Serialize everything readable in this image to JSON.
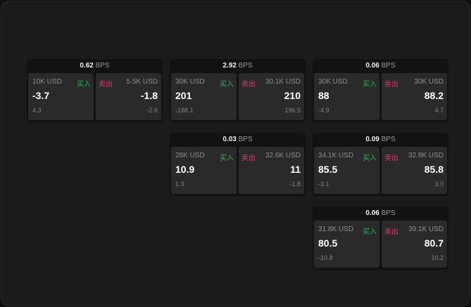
{
  "unit": "BPS",
  "buy_label": "买入",
  "sell_label": "卖出",
  "widgets": [
    {
      "spread": "0.62",
      "buy": {
        "qty": "10K USD",
        "price": "-3.7",
        "change": "4.3"
      },
      "sell": {
        "qty": "5.5K USD",
        "price": "-1.8",
        "change": "-2.6"
      }
    },
    {
      "spread": "2.92",
      "buy": {
        "qty": "30K USD",
        "price": "201",
        "change": "-188.1"
      },
      "sell": {
        "qty": "30.1K USD",
        "price": "210",
        "change": "196.5"
      }
    },
    {
      "spread": "0.06",
      "buy": {
        "qty": "30K USD",
        "price": "88",
        "change": "-4.9"
      },
      "sell": {
        "qty": "30K USD",
        "price": "88.2",
        "change": "4.7"
      }
    },
    {
      "spread": "0.03",
      "buy": {
        "qty": "28K USD",
        "price": "10.9",
        "change": "1.3"
      },
      "sell": {
        "qty": "32.6K USD",
        "price": "11",
        "change": "-1.8"
      }
    },
    {
      "spread": "0.09",
      "buy": {
        "qty": "34.1K USD",
        "price": "85.5",
        "change": "-3.1"
      },
      "sell": {
        "qty": "32.8K USD",
        "price": "85.8",
        "change": "3.0"
      }
    },
    {
      "spread": "0.06",
      "buy": {
        "qty": "31.8K USD",
        "price": "80.5",
        "change": "-10.8"
      },
      "sell": {
        "qty": "39.1K USD",
        "price": "80.7",
        "change": "10.2"
      }
    }
  ]
}
